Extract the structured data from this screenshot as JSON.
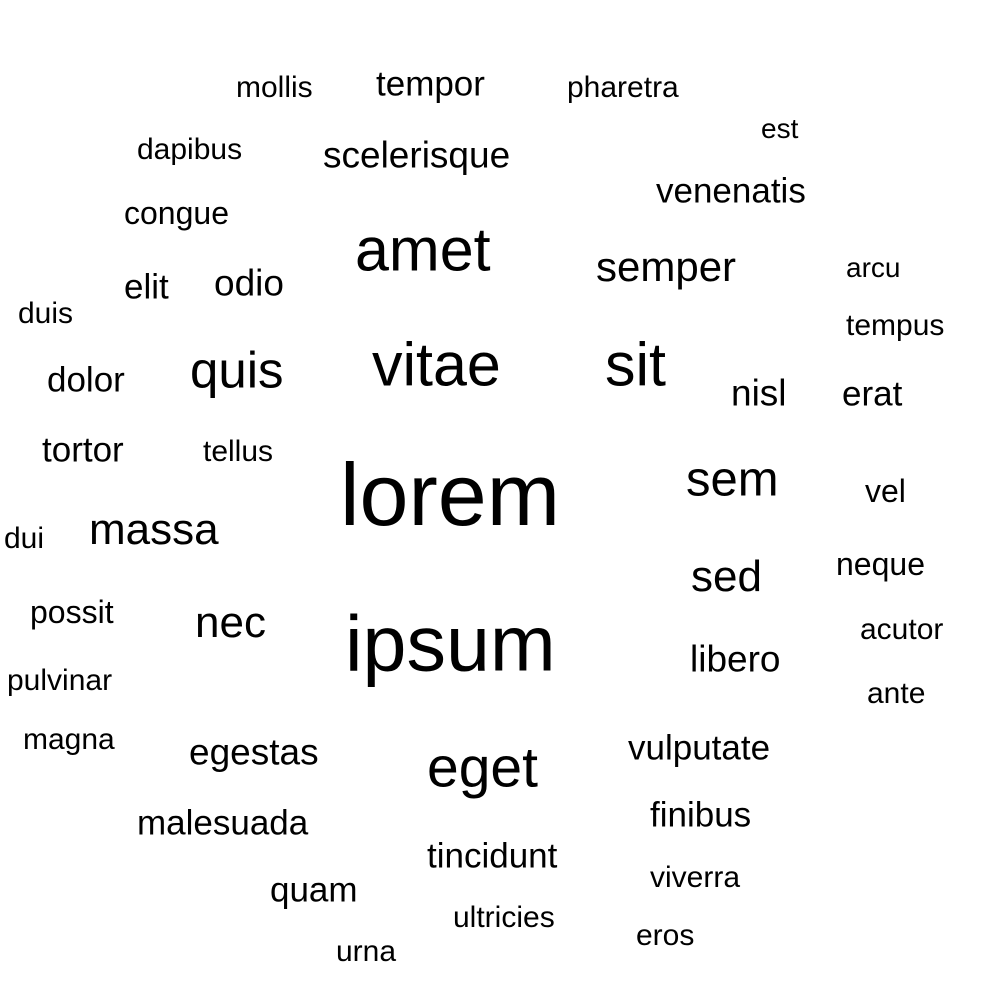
{
  "word_cloud": {
    "text_color": "#000000",
    "background_color": "#ffffff",
    "words": [
      {
        "text": "lorem",
        "weight": 10
      },
      {
        "text": "ipsum",
        "weight": 9.5
      },
      {
        "text": "amet",
        "weight": 7
      },
      {
        "text": "vitae",
        "weight": 7
      },
      {
        "text": "sit",
        "weight": 7
      },
      {
        "text": "eget",
        "weight": 6.5
      },
      {
        "text": "quis",
        "weight": 6
      },
      {
        "text": "sem",
        "weight": 5.5
      },
      {
        "text": "massa",
        "weight": 5
      },
      {
        "text": "sed",
        "weight": 5
      },
      {
        "text": "nec",
        "weight": 5
      },
      {
        "text": "semper",
        "weight": 4.5
      },
      {
        "text": "scelerisque",
        "weight": 4
      },
      {
        "text": "odio",
        "weight": 4
      },
      {
        "text": "nisl",
        "weight": 4
      },
      {
        "text": "libero",
        "weight": 4
      },
      {
        "text": "egestas",
        "weight": 4
      },
      {
        "text": "tempor",
        "weight": 3.5
      },
      {
        "text": "venenatis",
        "weight": 3.5
      },
      {
        "text": "elit",
        "weight": 3.5
      },
      {
        "text": "dolor",
        "weight": 3.5
      },
      {
        "text": "tortor",
        "weight": 3.5
      },
      {
        "text": "erat",
        "weight": 3.5
      },
      {
        "text": "vulputate",
        "weight": 3.5
      },
      {
        "text": "finibus",
        "weight": 3.5
      },
      {
        "text": "malesuada",
        "weight": 3.5
      },
      {
        "text": "tincidunt",
        "weight": 3.5
      },
      {
        "text": "quam",
        "weight": 3.5
      },
      {
        "text": "congue",
        "weight": 3
      },
      {
        "text": "possit",
        "weight": 3
      },
      {
        "text": "vel",
        "weight": 3
      },
      {
        "text": "neque",
        "weight": 3
      },
      {
        "text": "mollis",
        "weight": 3
      },
      {
        "text": "pharetra",
        "weight": 3
      },
      {
        "text": "dapibus",
        "weight": 3
      },
      {
        "text": "tempus",
        "weight": 3
      },
      {
        "text": "duis",
        "weight": 3
      },
      {
        "text": "tellus",
        "weight": 3
      },
      {
        "text": "dui",
        "weight": 3
      },
      {
        "text": "pulvinar",
        "weight": 3
      },
      {
        "text": "magna",
        "weight": 3
      },
      {
        "text": "acutor",
        "weight": 3
      },
      {
        "text": "ante",
        "weight": 3
      },
      {
        "text": "viverra",
        "weight": 3
      },
      {
        "text": "ultricies",
        "weight": 3
      },
      {
        "text": "eros",
        "weight": 3
      },
      {
        "text": "urna",
        "weight": 3
      },
      {
        "text": "est",
        "weight": 2.5
      },
      {
        "text": "arcu",
        "weight": 2.5
      }
    ]
  }
}
